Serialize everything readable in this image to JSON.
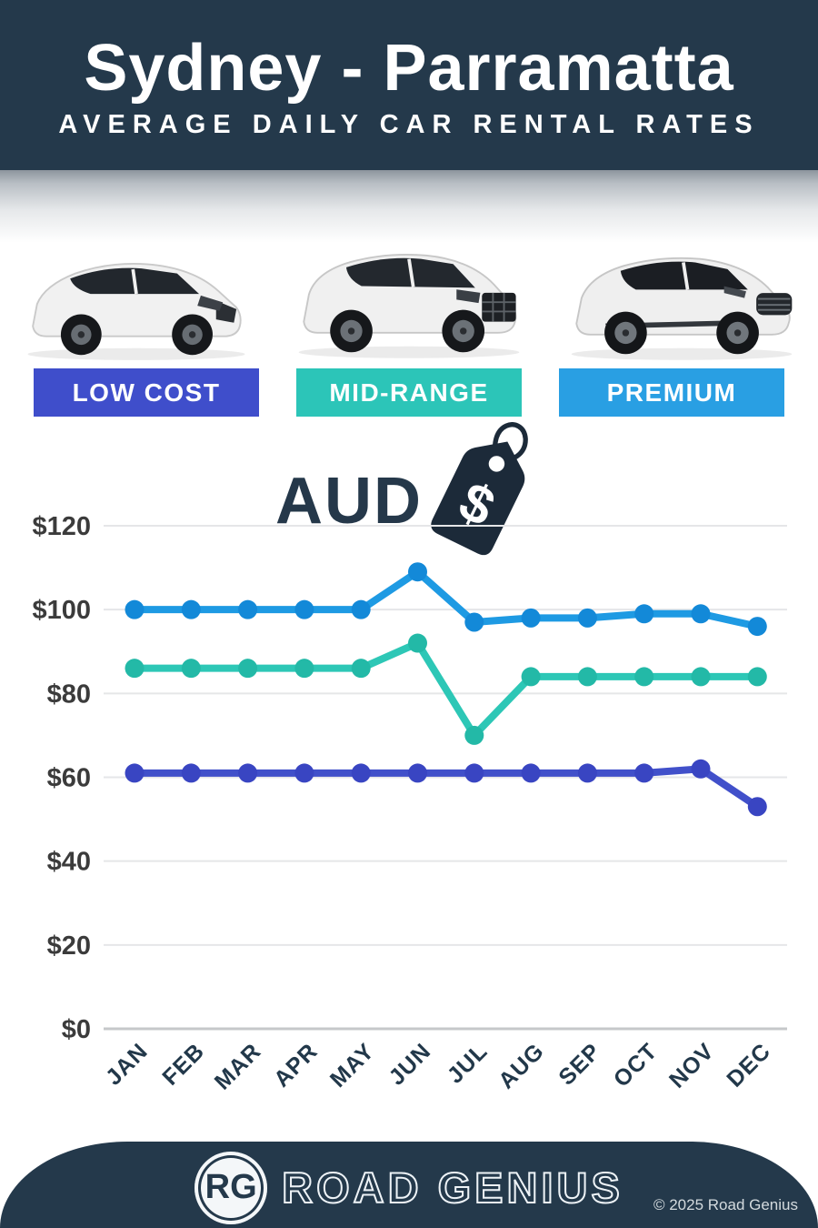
{
  "header": {
    "title": "Sydney - Parramatta",
    "subtitle": "AVERAGE DAILY CAR RENTAL RATES"
  },
  "categories": [
    {
      "label": "LOW COST",
      "color": "#3f4ecb"
    },
    {
      "label": "MID-RANGE",
      "color": "#2cc5b8"
    },
    {
      "label": "PREMIUM",
      "color": "#299fe3"
    }
  ],
  "currency": {
    "label": "AUD",
    "tag_symbol": "$"
  },
  "chart_data": {
    "type": "line",
    "title": "Sydney - Parramatta average daily car rental rates (AUD)",
    "categories": [
      "JAN",
      "FEB",
      "MAR",
      "APR",
      "MAY",
      "JUN",
      "JUL",
      "AUG",
      "SEP",
      "OCT",
      "NOV",
      "DEC"
    ],
    "series": [
      {
        "name": "Premium",
        "color": "#1e9ae3",
        "point_color": "#1389d8",
        "values": [
          100,
          100,
          100,
          100,
          100,
          109,
          97,
          98,
          98,
          99,
          99,
          96
        ]
      },
      {
        "name": "Mid-Range",
        "color": "#2dc7b6",
        "point_color": "#23b9a7",
        "values": [
          86,
          86,
          86,
          86,
          86,
          92,
          70,
          84,
          84,
          84,
          84,
          84
        ]
      },
      {
        "name": "Low Cost",
        "color": "#4150ca",
        "point_color": "#3945c2",
        "values": [
          61,
          61,
          61,
          61,
          61,
          61,
          61,
          61,
          61,
          61,
          62,
          53
        ]
      }
    ],
    "xlabel": "",
    "ylabel": "",
    "y_tick_prefix": "$",
    "y_ticks": [
      0,
      20,
      40,
      60,
      80,
      100,
      120
    ],
    "ylim": [
      0,
      120
    ],
    "grid": true,
    "legend_position": "none"
  },
  "footer": {
    "logo": "RG",
    "brand": "ROAD GENIUS",
    "copyright": "© 2025 Road Genius"
  }
}
